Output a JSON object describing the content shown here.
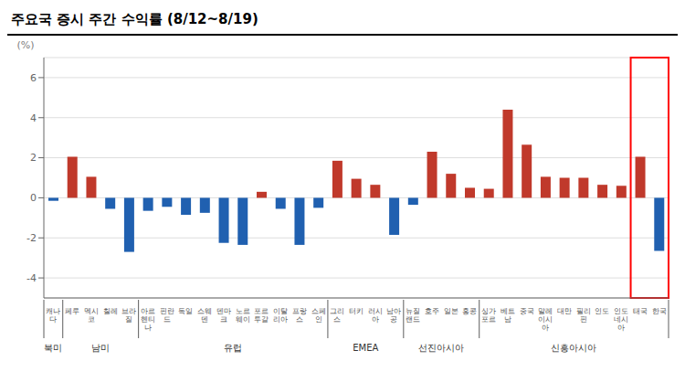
{
  "chart_data": {
    "type": "bar",
    "title": "주요국 증시 주간 수익률 (8/12~8/19)",
    "ylabel": "(%)",
    "categories": [
      "캐나\n다",
      "페루",
      "멕시\n코",
      "칠레",
      "브라\n질",
      "아르\n헨티\n나",
      "핀란\n드",
      "독일",
      "스웨\n덴",
      "덴마\n크",
      "노르\n웨이",
      "포르\n투갈",
      "이탈\n리아",
      "프랑\n스",
      "스페\n인",
      "그리\n스",
      "터키",
      "러시\n아",
      "남아\n공",
      "뉴질\n랜드",
      "호주",
      "일본",
      "홍콩",
      "싱가\n포르",
      "베트\n남",
      "중국",
      "말레\n이시\n아",
      "대만",
      "필리\n핀",
      "인도",
      "인도\n네시\n아",
      "태국",
      "한국"
    ],
    "values": [
      -0.15,
      2.05,
      1.05,
      -0.55,
      -2.7,
      -0.65,
      -0.45,
      -0.85,
      -0.75,
      -2.25,
      -2.35,
      0.3,
      -0.55,
      -2.35,
      -0.5,
      1.85,
      0.95,
      0.65,
      -1.85,
      -0.35,
      2.3,
      1.2,
      0.5,
      0.45,
      4.4,
      2.65,
      1.05,
      1.0,
      1.0,
      0.65,
      0.6,
      2.05,
      -2.65
    ],
    "colors": [
      "#2060b0",
      "#c0392b",
      "#c0392b",
      "#2060b0",
      "#2060b0",
      "#2060b0",
      "#2060b0",
      "#2060b0",
      "#2060b0",
      "#2060b0",
      "#2060b0",
      "#c0392b",
      "#2060b0",
      "#2060b0",
      "#2060b0",
      "#c0392b",
      "#c0392b",
      "#c0392b",
      "#2060b0",
      "#2060b0",
      "#c0392b",
      "#c0392b",
      "#c0392b",
      "#c0392b",
      "#c0392b",
      "#c0392b",
      "#c0392b",
      "#c0392b",
      "#c0392b",
      "#c0392b",
      "#c0392b",
      "#c0392b",
      "#2060b0"
    ],
    "ylim": [
      -5,
      7
    ],
    "yticks": [
      -4,
      -2,
      0,
      2,
      4,
      6
    ],
    "grid": true,
    "annotations": [
      {
        "text": "북미",
        "start": 0,
        "end": 1
      },
      {
        "text": "남미",
        "start": 1,
        "end": 5
      },
      {
        "text": "유럽",
        "start": 5,
        "end": 15
      },
      {
        "text": "EMEA",
        "start": 15,
        "end": 19
      },
      {
        "text": "선진아시아",
        "start": 19,
        "end": 23
      },
      {
        "text": "신흥아시아",
        "start": 23,
        "end": 33
      },
      {
        "start": 31,
        "end": 33,
        "color": "#ff0000"
      }
    ]
  }
}
